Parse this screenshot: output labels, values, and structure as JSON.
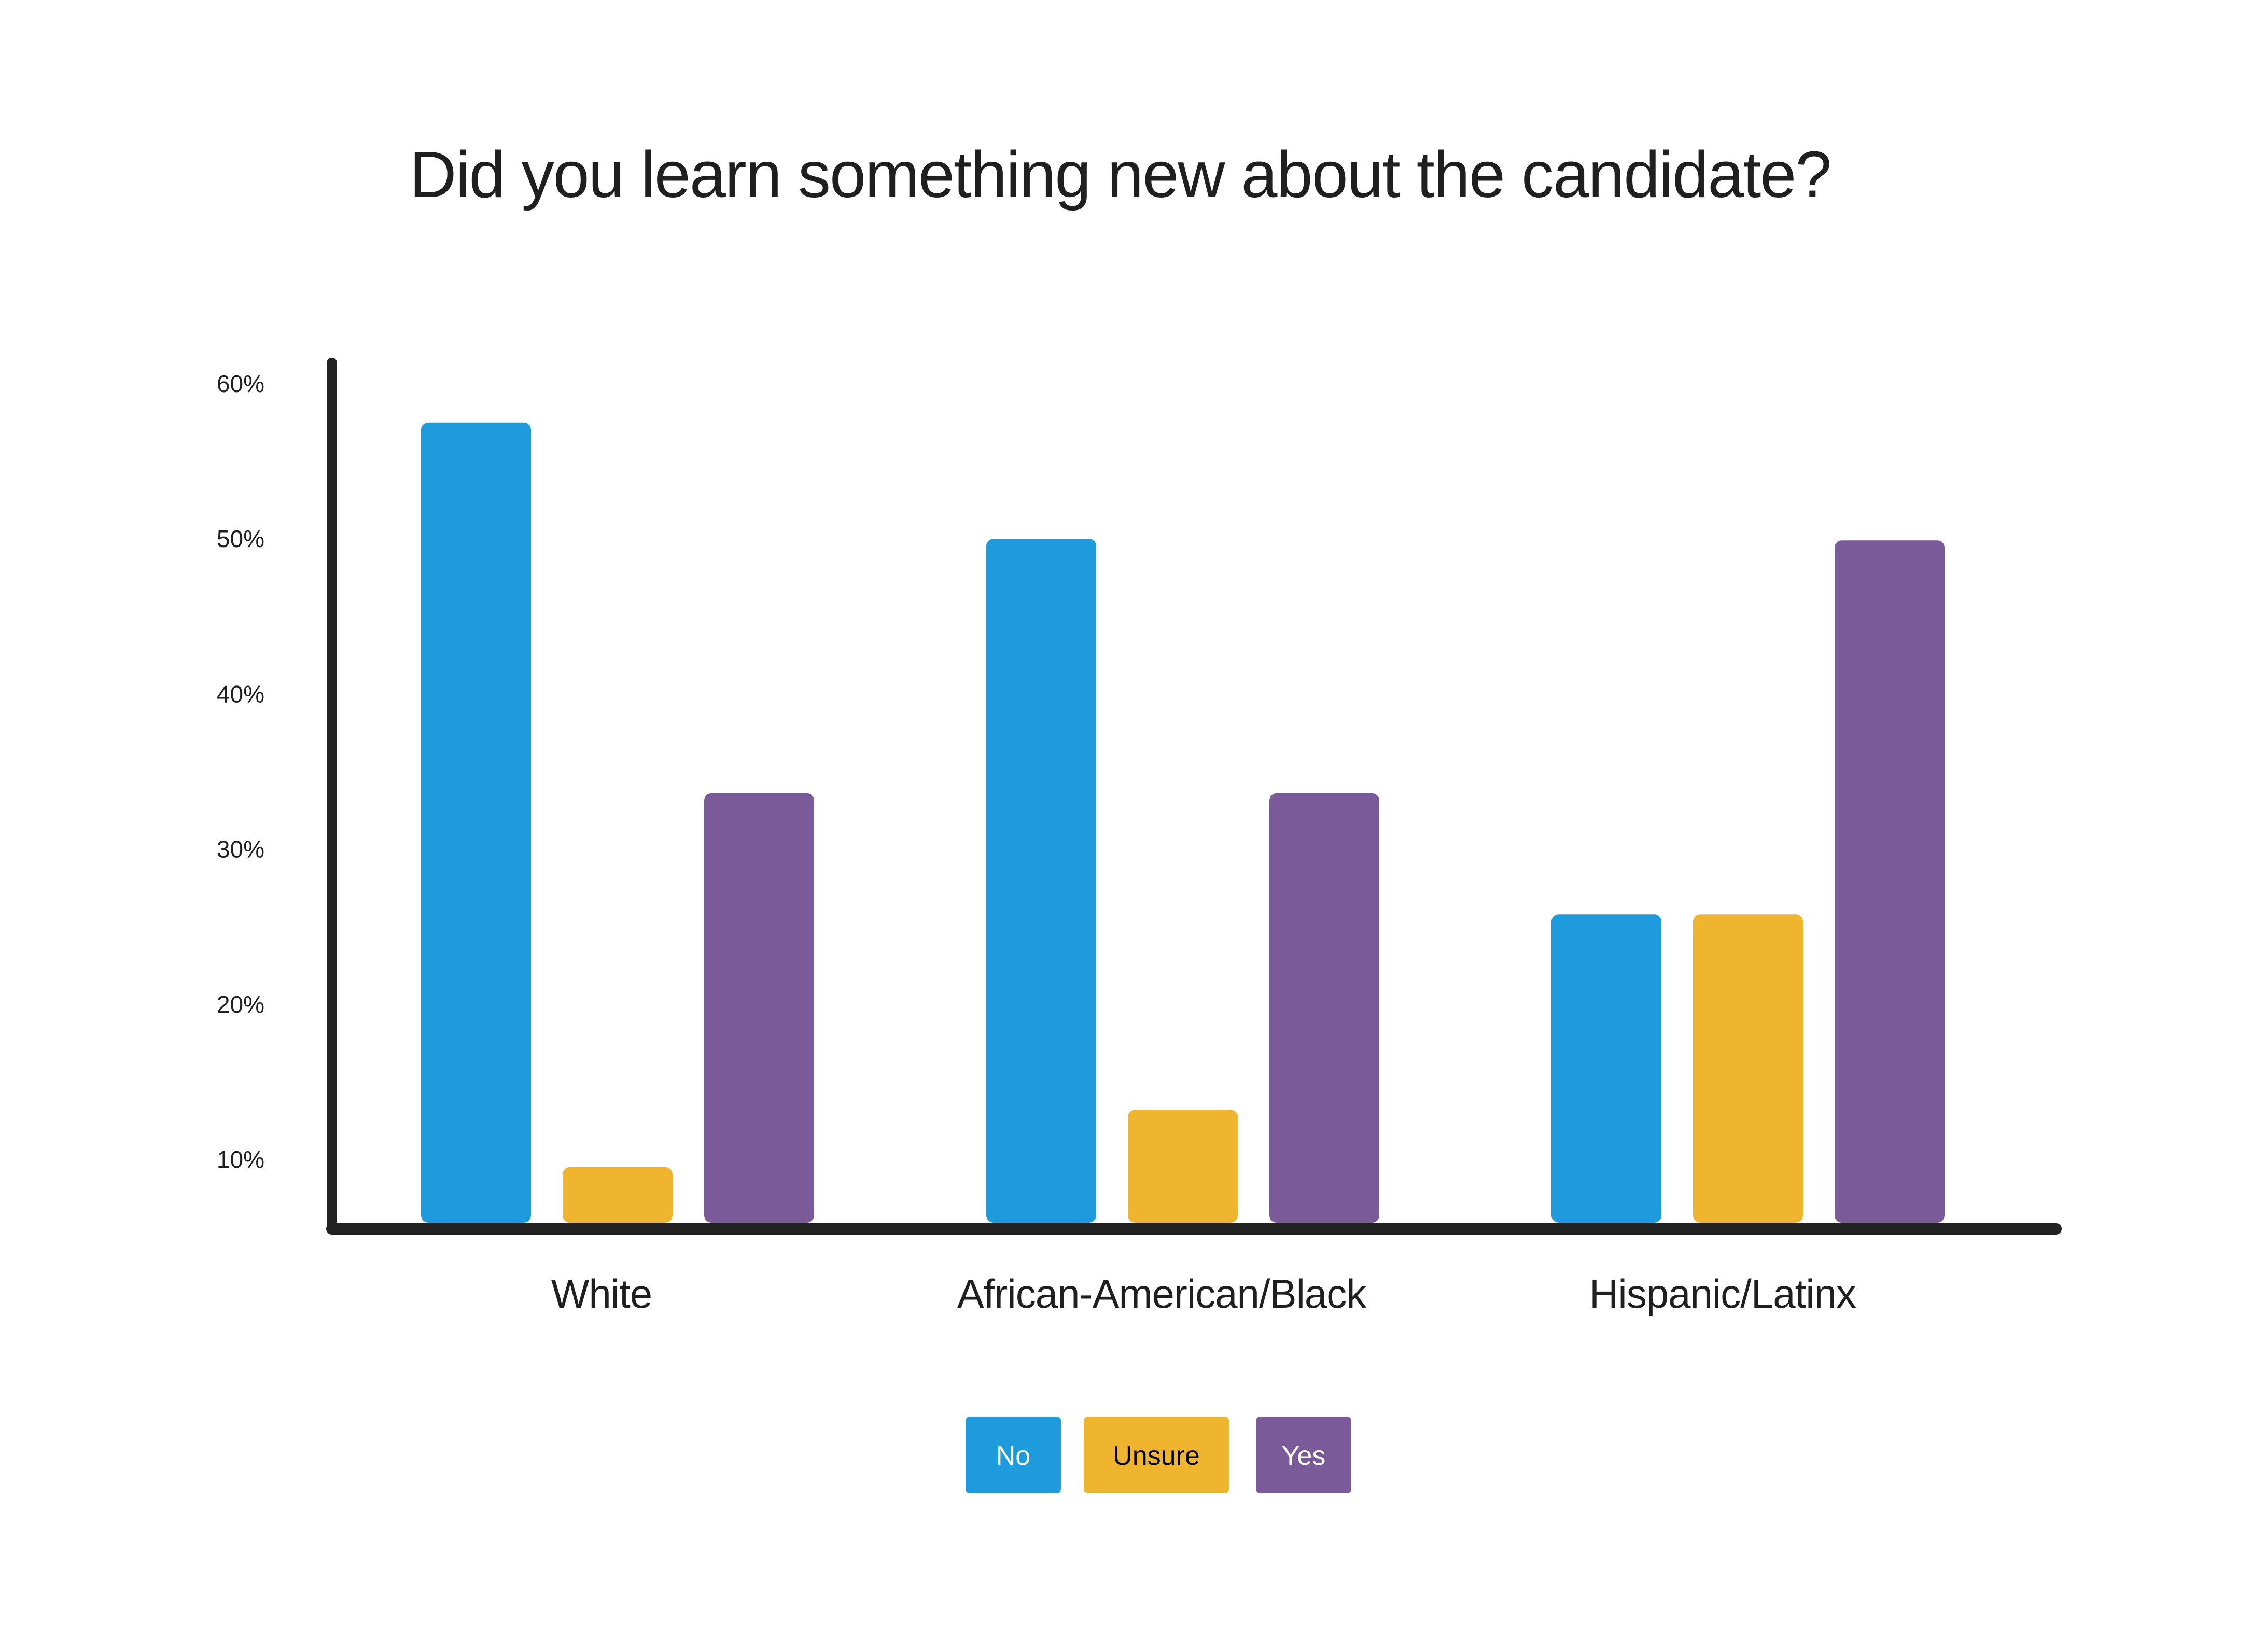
{
  "chart_data": {
    "type": "bar",
    "title": "Did you learn something new about the candidate?",
    "xlabel": "",
    "ylabel": "",
    "categories": [
      "White",
      "African-American/Black",
      "Hispanic/Latinx"
    ],
    "series": [
      {
        "name": "No",
        "color": "#1e9bdd",
        "label_color": "#ffffff",
        "values": [
          57.5,
          50.0,
          25.8
        ]
      },
      {
        "name": "Unsure",
        "color": "#f0b52e",
        "label_color": "#000000",
        "values": [
          9.5,
          13.2,
          25.8
        ]
      },
      {
        "name": "Yes",
        "color": "#7b5a9a",
        "label_color": "#ffffff",
        "values": [
          33.6,
          33.6,
          49.9
        ]
      }
    ],
    "y_ticks": [
      10,
      20,
      30,
      40,
      50,
      60
    ],
    "y_tick_labels": [
      "10%",
      "20%",
      "30%",
      "40%",
      "50%",
      "60%"
    ],
    "ylim": [
      6,
      62
    ],
    "grid": false,
    "legend_position": "bottom-center",
    "axis_color": "#222222"
  }
}
